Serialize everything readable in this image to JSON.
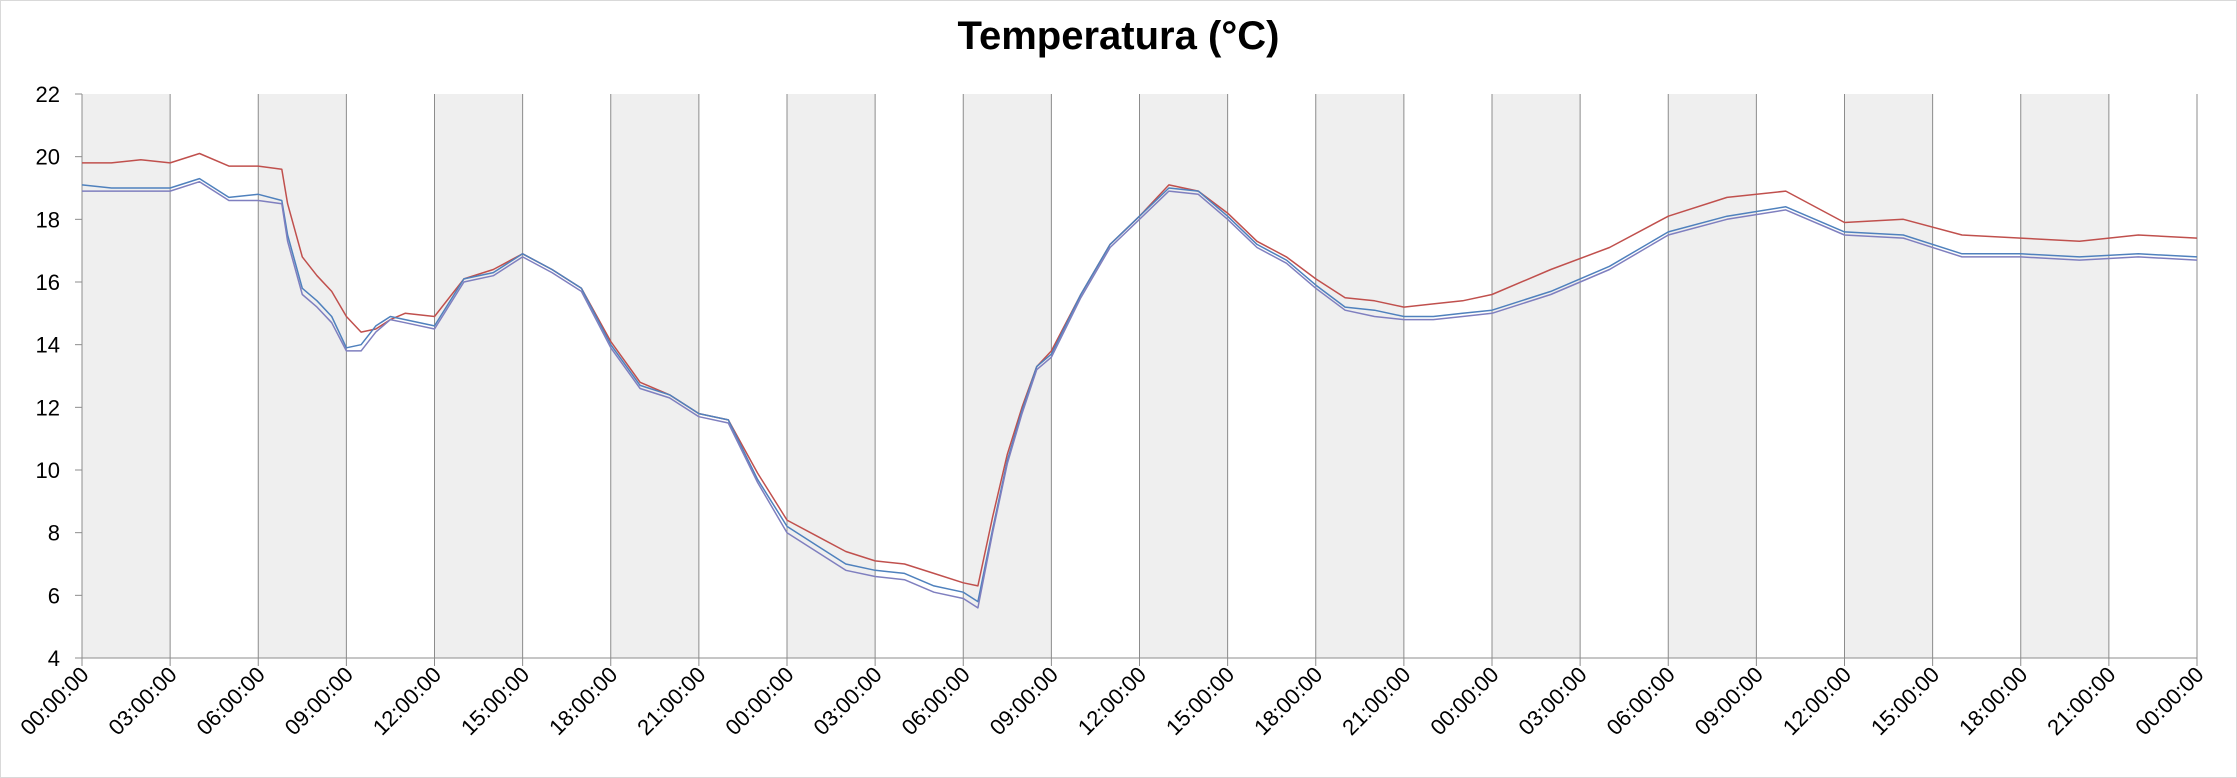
{
  "chart_data": {
    "type": "line",
    "title": "Temperatura (°C)",
    "xlabel": "",
    "ylabel": "",
    "ylim": [
      4,
      22
    ],
    "y_ticks": [
      4,
      6,
      8,
      10,
      12,
      14,
      16,
      18,
      20,
      22
    ],
    "x_tick_labels": [
      "00:00:00",
      "03:00:00",
      "06:00:00",
      "09:00:00",
      "12:00:00",
      "15:00:00",
      "18:00:00",
      "21:00:00",
      "00:00:00",
      "03:00:00",
      "06:00:00",
      "09:00:00",
      "12:00:00",
      "15:00:00",
      "18:00:00",
      "21:00:00",
      "00:00:00",
      "03:00:00",
      "06:00:00",
      "09:00:00",
      "12:00:00",
      "15:00:00",
      "18:00:00",
      "21:00:00",
      "00:00:00"
    ],
    "x_hours": [
      0,
      1,
      2,
      3,
      4,
      5,
      6,
      6.8,
      7,
      7.5,
      8,
      8.5,
      9,
      9.5,
      10,
      10.5,
      11,
      12,
      13,
      14,
      15,
      16,
      17,
      18,
      19,
      20,
      21,
      22,
      23,
      24,
      25,
      26,
      27,
      28,
      29,
      30,
      30.5,
      31,
      31.5,
      32,
      32.5,
      33,
      34,
      35,
      36,
      37,
      38,
      39,
      40,
      41,
      42,
      43,
      44,
      45,
      46,
      47,
      48,
      50,
      52,
      54,
      56,
      58,
      60,
      62,
      64,
      66,
      68,
      70,
      72
    ],
    "series": [
      {
        "color": "#c0504d",
        "values": [
          19.8,
          19.8,
          19.9,
          19.8,
          20.1,
          19.7,
          19.7,
          19.6,
          18.5,
          16.8,
          16.2,
          15.7,
          14.9,
          14.4,
          14.5,
          14.8,
          15.0,
          14.9,
          16.1,
          16.4,
          16.9,
          16.4,
          15.8,
          14.1,
          12.8,
          12.4,
          11.8,
          11.6,
          9.9,
          8.4,
          7.9,
          7.4,
          7.1,
          7.0,
          6.7,
          6.4,
          6.3,
          8.5,
          10.5,
          12.0,
          13.3,
          13.8,
          15.6,
          17.2,
          18.1,
          19.1,
          18.9,
          18.2,
          17.3,
          16.8,
          16.1,
          15.5,
          15.4,
          15.2,
          15.3,
          15.4,
          15.6,
          16.4,
          17.1,
          18.1,
          18.7,
          18.9,
          17.9,
          18.0,
          17.5,
          17.4,
          17.3,
          17.5,
          17.4
        ]
      },
      {
        "color": "#4f81bd",
        "values": [
          19.1,
          19.0,
          19.0,
          19.0,
          19.3,
          18.7,
          18.8,
          18.6,
          17.5,
          15.8,
          15.4,
          14.9,
          13.9,
          14.0,
          14.6,
          14.9,
          14.8,
          14.6,
          16.1,
          16.3,
          16.9,
          16.4,
          15.8,
          14.0,
          12.7,
          12.4,
          11.8,
          11.6,
          9.7,
          8.2,
          7.6,
          7.0,
          6.8,
          6.7,
          6.3,
          6.1,
          5.8,
          8.1,
          10.3,
          11.9,
          13.3,
          13.7,
          15.6,
          17.2,
          18.1,
          19.0,
          18.9,
          18.1,
          17.2,
          16.7,
          15.9,
          15.2,
          15.1,
          14.9,
          14.9,
          15.0,
          15.1,
          15.7,
          16.5,
          17.6,
          18.1,
          18.4,
          17.6,
          17.5,
          16.9,
          16.9,
          16.8,
          16.9,
          16.8
        ]
      },
      {
        "color": "#7f7fbf",
        "values": [
          18.9,
          18.9,
          18.9,
          18.9,
          19.2,
          18.6,
          18.6,
          18.5,
          17.3,
          15.6,
          15.2,
          14.7,
          13.8,
          13.8,
          14.4,
          14.8,
          14.7,
          14.5,
          16.0,
          16.2,
          16.8,
          16.3,
          15.7,
          13.9,
          12.6,
          12.3,
          11.7,
          11.5,
          9.6,
          8.0,
          7.4,
          6.8,
          6.6,
          6.5,
          6.1,
          5.9,
          5.6,
          8.0,
          10.2,
          11.8,
          13.2,
          13.6,
          15.5,
          17.1,
          18.0,
          18.9,
          18.8,
          18.0,
          17.1,
          16.6,
          15.8,
          15.1,
          14.9,
          14.8,
          14.8,
          14.9,
          15.0,
          15.6,
          16.4,
          17.5,
          18.0,
          18.3,
          17.5,
          17.4,
          16.8,
          16.8,
          16.7,
          16.8,
          16.7
        ]
      }
    ]
  }
}
